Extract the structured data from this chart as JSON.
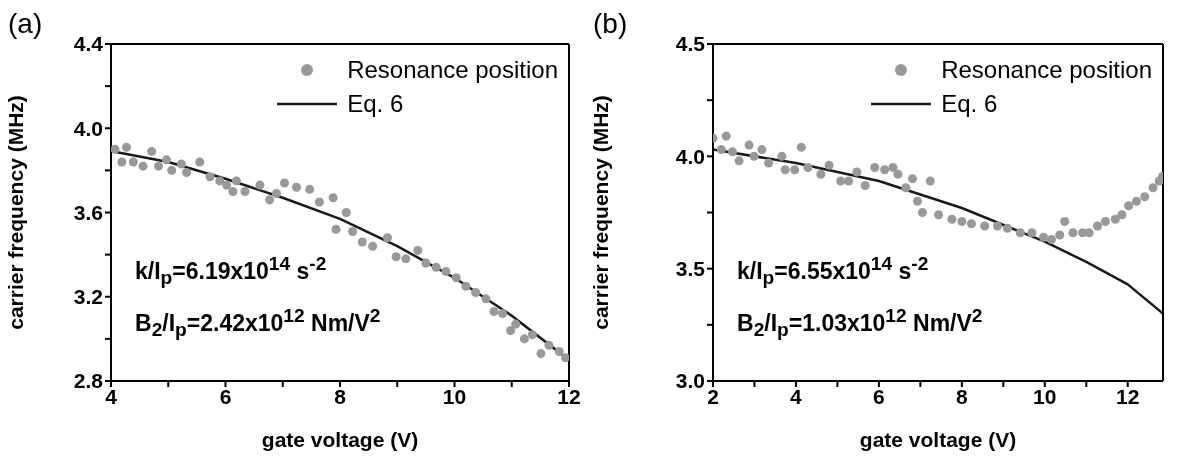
{
  "chart_data": [
    {
      "type": "scatter",
      "title": "(a)",
      "xlabel": "gate voltage (V)",
      "ylabel": "carrier frequency (MHz)",
      "xlim": [
        4,
        12
      ],
      "xticks": [
        4,
        {
          "value": 5,
          "label": null
        },
        6,
        {
          "value": 7,
          "label": null
        },
        8,
        {
          "value": 9,
          "label": null
        },
        10,
        {
          "value": 11,
          "label": null
        },
        12
      ],
      "ylim": [
        2.8,
        4.4
      ],
      "yticks": [
        2.8,
        {
          "value": 3.0,
          "label": null
        },
        3.2,
        {
          "value": 3.4,
          "label": null
        },
        3.6,
        {
          "value": 3.8,
          "label": null
        },
        {
          "value": 4.0,
          "label": "4.0"
        },
        {
          "value": 4.2,
          "label": null
        },
        4.4
      ],
      "legend": "top right",
      "grid": false,
      "annotations": [
        "k/I$_{p}$=6.19x10$^{14}$ s$^{-2}$",
        "B$_{2}$/I$_{p}$=2.42x10$^{12}$ Nm/V$^{2}$"
      ],
      "series": [
        {
          "name": "Resonance position",
          "type": "scatter",
          "marker": "circle",
          "color": "#999999",
          "x": [
            4.07,
            4.19,
            4.27,
            4.39,
            4.56,
            4.71,
            4.83,
            4.97,
            5.06,
            5.23,
            5.32,
            5.55,
            5.73,
            5.9,
            6.02,
            6.13,
            6.19,
            6.34,
            6.6,
            6.77,
            6.89,
            7.03,
            7.24,
            7.47,
            7.64,
            7.88,
            7.93,
            8.11,
            8.22,
            8.39,
            8.57,
            8.83,
            8.98,
            9.15,
            9.36,
            9.5,
            9.68,
            9.85,
            10.03,
            10.2,
            10.37,
            10.55,
            10.69,
            10.84,
            10.98,
            11.07,
            11.22,
            11.36,
            11.51,
            11.65,
            11.83,
            11.94
          ],
          "values": [
            3.9,
            3.84,
            3.91,
            3.84,
            3.82,
            3.89,
            3.82,
            3.85,
            3.8,
            3.83,
            3.79,
            3.84,
            3.77,
            3.75,
            3.73,
            3.7,
            3.75,
            3.7,
            3.73,
            3.66,
            3.69,
            3.74,
            3.72,
            3.71,
            3.65,
            3.67,
            3.52,
            3.6,
            3.51,
            3.46,
            3.44,
            3.48,
            3.39,
            3.38,
            3.42,
            3.36,
            3.34,
            3.32,
            3.29,
            3.25,
            3.22,
            3.19,
            3.13,
            3.12,
            3.04,
            3.07,
            3.0,
            3.02,
            2.93,
            2.97,
            2.94,
            2.91
          ]
        },
        {
          "name": "Eq. 6",
          "type": "line",
          "marker": "none",
          "line_style": "solid",
          "color": "#1a1a1a",
          "x": [
            4.04,
            5,
            6,
            7,
            8,
            9,
            10,
            11,
            12
          ],
          "values": [
            3.89,
            3.84,
            3.76,
            3.67,
            3.57,
            3.44,
            3.29,
            3.11,
            2.9
          ]
        }
      ]
    },
    {
      "type": "scatter",
      "title": "(b)",
      "xlabel": "gate voltage (V)",
      "ylabel": "carrier frequency (MHz)",
      "xlim": [
        2,
        12.85
      ],
      "xticks": [
        2,
        {
          "value": 3,
          "label": null
        },
        4,
        {
          "value": 5,
          "label": null
        },
        6,
        {
          "value": 7,
          "label": null
        },
        8,
        {
          "value": 9,
          "label": null
        },
        10,
        {
          "value": 11,
          "label": null
        },
        12
      ],
      "ylim": [
        3.0,
        4.5
      ],
      "yticks": [
        {
          "value": 3.0,
          "label": "3.0"
        },
        {
          "value": 3.25,
          "label": null
        },
        3.5,
        {
          "value": 3.75,
          "label": null
        },
        {
          "value": 4.0,
          "label": "4.0"
        },
        {
          "value": 4.25,
          "label": null
        },
        4.5
      ],
      "legend": "top right",
      "grid": false,
      "annotations": [
        "k/I$_{p}$=6.55x10$^{14}$ s$^{-2}$",
        "B$_{2}$/I$_{p}$=1.03x10$^{12}$ Nm/V$^{2}$"
      ],
      "series": [
        {
          "name": "Resonance position",
          "type": "scatter",
          "marker": "circle",
          "color": "#999999",
          "x": [
            2.0,
            2.2,
            2.32,
            2.47,
            2.63,
            2.87,
            2.99,
            3.18,
            3.34,
            3.66,
            3.74,
            3.97,
            4.13,
            4.29,
            4.6,
            4.8,
            5.08,
            5.27,
            5.47,
            5.67,
            5.9,
            6.14,
            6.34,
            6.46,
            6.65,
            6.81,
            6.93,
            7.05,
            7.24,
            7.44,
            7.76,
            8.0,
            8.23,
            8.55,
            8.86,
            9.1,
            9.41,
            9.69,
            9.97,
            10.16,
            10.36,
            10.48,
            10.68,
            10.91,
            11.07,
            11.27,
            11.46,
            11.7,
            11.86,
            12.02,
            12.21,
            12.41,
            12.61,
            12.76,
            12.84
          ],
          "values": [
            4.08,
            4.03,
            4.09,
            4.02,
            3.98,
            4.05,
            4.0,
            4.03,
            3.97,
            4.0,
            3.94,
            3.94,
            4.04,
            3.95,
            3.92,
            3.96,
            3.89,
            3.89,
            3.93,
            3.87,
            3.95,
            3.94,
            3.95,
            3.92,
            3.86,
            3.9,
            3.8,
            3.75,
            3.89,
            3.74,
            3.72,
            3.71,
            3.7,
            3.69,
            3.69,
            3.68,
            3.66,
            3.66,
            3.64,
            3.63,
            3.65,
            3.71,
            3.66,
            3.66,
            3.66,
            3.69,
            3.71,
            3.72,
            3.74,
            3.78,
            3.8,
            3.82,
            3.86,
            3.89,
            3.91
          ]
        },
        {
          "name": "Eq. 6",
          "type": "line",
          "marker": "none",
          "line_style": "solid",
          "color": "#1a1a1a",
          "x": [
            2,
            4,
            6,
            8,
            10,
            11,
            12,
            12.85
          ],
          "values": [
            4.03,
            3.97,
            3.89,
            3.77,
            3.62,
            3.53,
            3.43,
            3.3
          ]
        }
      ]
    }
  ]
}
